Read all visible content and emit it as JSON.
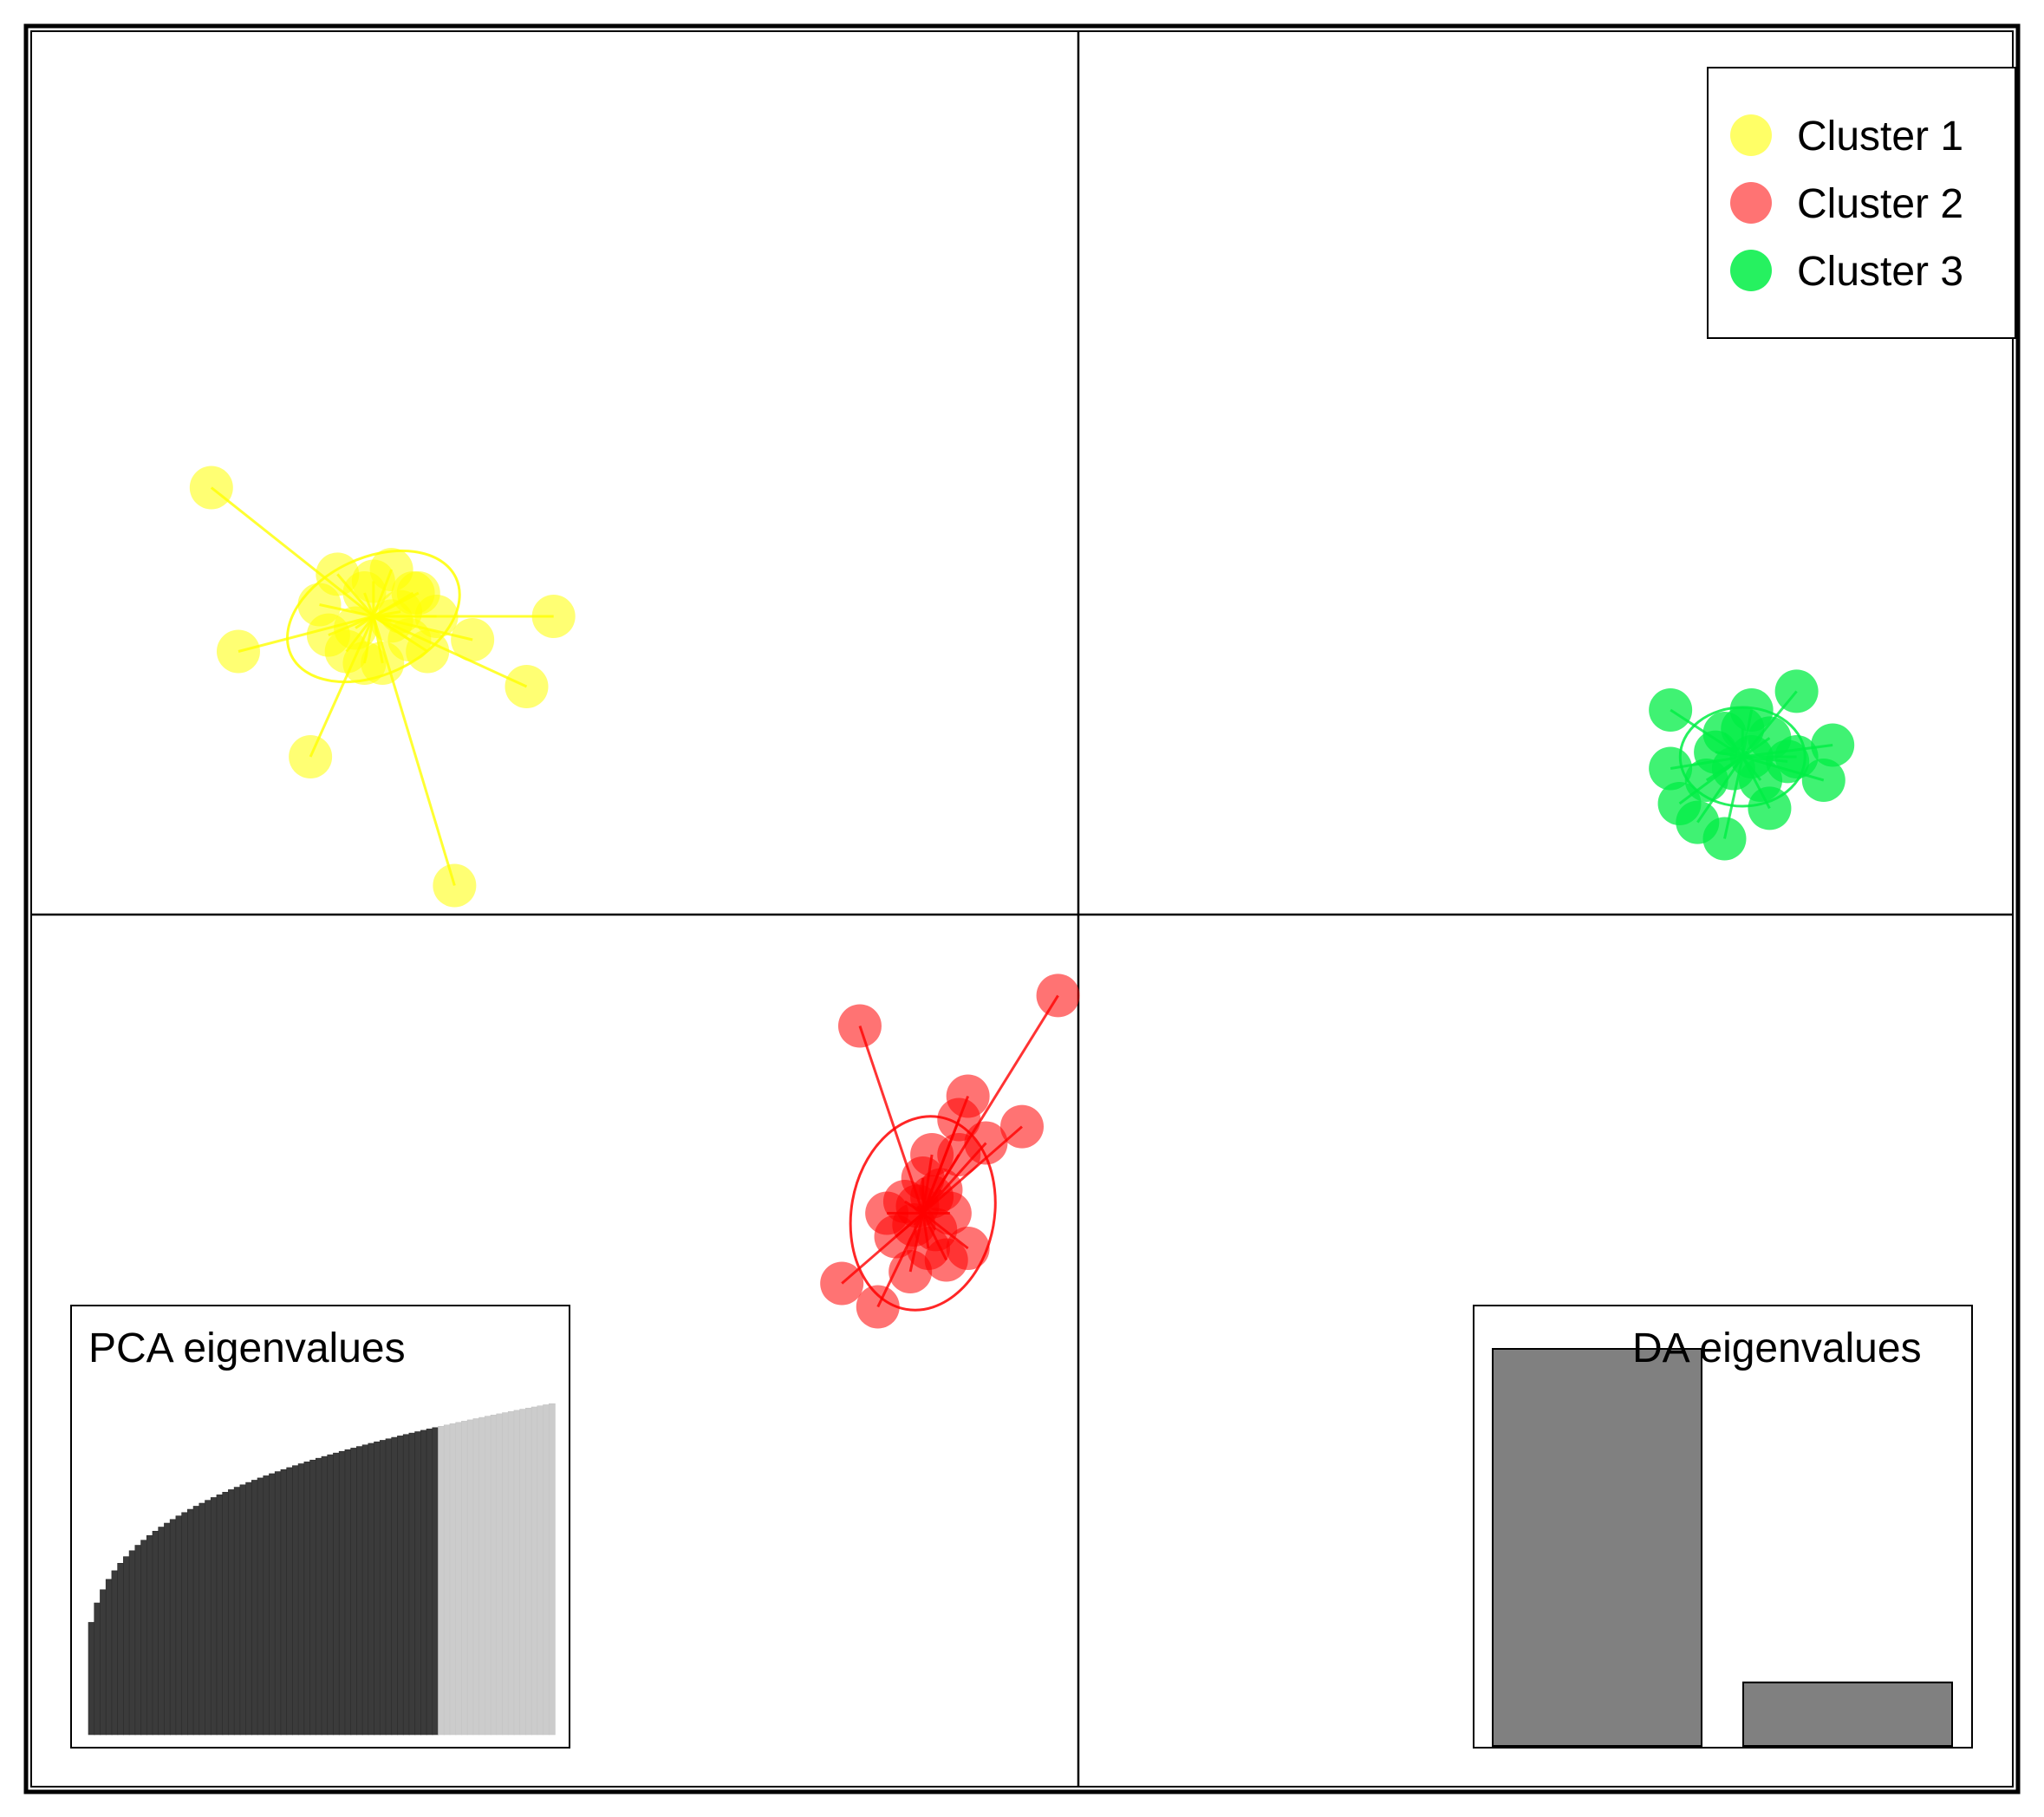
{
  "chart_data": {
    "type": "scatter",
    "title": "",
    "xlabel": "",
    "ylabel": "",
    "axes_lines": {
      "x": 0,
      "y": 0
    },
    "grid": false,
    "legend": {
      "position": "top-right",
      "entries": [
        {
          "label": "Cluster 1",
          "color": "#ffff00"
        },
        {
          "label": "Cluster 2",
          "color": "#ff0000"
        },
        {
          "label": "Cluster 3",
          "color": "#00ee44"
        }
      ]
    },
    "scatter_range": {
      "x": [
        -5.7,
        5.3
      ],
      "y": [
        -3.8,
        3.7
      ]
    },
    "series": [
      {
        "name": "Cluster 1",
        "color": "#ffff00",
        "centroid": [
          -3.8,
          1.2
        ],
        "points": [
          [
            -4.7,
            1.75
          ],
          [
            -2.8,
            1.2
          ],
          [
            -4.55,
            1.05
          ],
          [
            -2.95,
            0.9
          ],
          [
            -4.15,
            0.6
          ],
          [
            -3.35,
            0.05
          ],
          [
            -4.0,
            1.38
          ],
          [
            -3.7,
            1.4
          ],
          [
            -3.55,
            1.3
          ],
          [
            -4.1,
            1.25
          ],
          [
            -3.6,
            1.1
          ],
          [
            -3.95,
            1.05
          ],
          [
            -3.75,
            1.0
          ],
          [
            -3.45,
            1.2
          ],
          [
            -3.85,
            1.3
          ],
          [
            -3.9,
            1.15
          ],
          [
            -3.65,
            1.22
          ],
          [
            -4.05,
            1.12
          ],
          [
            -3.5,
            1.05
          ],
          [
            -3.7,
            1.18
          ],
          [
            -3.8,
            1.35
          ],
          [
            -3.85,
            1.0
          ],
          [
            -3.58,
            1.3
          ],
          [
            -3.25,
            1.1
          ]
        ]
      },
      {
        "name": "Cluster 2",
        "color": "#ff0000",
        "centroid": [
          -0.75,
          -1.35
        ],
        "points": [
          [
            -1.1,
            -0.55
          ],
          [
            0.0,
            -0.42
          ],
          [
            -0.5,
            -0.85
          ],
          [
            -0.2,
            -0.98
          ],
          [
            -1.2,
            -1.65
          ],
          [
            -1.0,
            -1.75
          ],
          [
            -0.55,
            -0.95
          ],
          [
            -0.7,
            -1.1
          ],
          [
            -0.85,
            -1.3
          ],
          [
            -0.65,
            -1.25
          ],
          [
            -0.8,
            -1.4
          ],
          [
            -0.6,
            -1.35
          ],
          [
            -0.75,
            -1.2
          ],
          [
            -0.9,
            -1.45
          ],
          [
            -0.72,
            -1.5
          ],
          [
            -0.82,
            -1.6
          ],
          [
            -0.62,
            -1.55
          ],
          [
            -0.5,
            -1.5
          ],
          [
            -0.95,
            -1.35
          ],
          [
            -0.7,
            -1.28
          ],
          [
            -0.55,
            -1.1
          ],
          [
            -0.4,
            -1.05
          ],
          [
            -0.78,
            -1.32
          ],
          [
            -0.68,
            -1.42
          ]
        ]
      },
      {
        "name": "Cluster 3",
        "color": "#00ee44",
        "centroid": [
          3.8,
          0.6
        ],
        "points": [
          [
            3.4,
            0.8
          ],
          [
            4.1,
            0.88
          ],
          [
            4.3,
            0.65
          ],
          [
            4.25,
            0.5
          ],
          [
            3.95,
            0.38
          ],
          [
            3.55,
            0.32
          ],
          [
            3.4,
            0.55
          ],
          [
            3.45,
            0.4
          ],
          [
            3.7,
            0.25
          ],
          [
            3.85,
            0.8
          ],
          [
            3.7,
            0.7
          ],
          [
            3.85,
            0.6
          ],
          [
            3.95,
            0.68
          ],
          [
            3.75,
            0.55
          ],
          [
            3.9,
            0.5
          ],
          [
            3.65,
            0.62
          ],
          [
            4.05,
            0.58
          ],
          [
            3.8,
            0.72
          ],
          [
            3.6,
            0.5
          ],
          [
            4.1,
            0.6
          ]
        ]
      }
    ],
    "insets": [
      {
        "label": "PCA eigenvalues",
        "position": "bottom-left",
        "type": "bar",
        "n_bars": 80,
        "n_retained": 60,
        "retained_color": "#3b3b3b",
        "other_color": "#cccccc"
      },
      {
        "label": "DA eigenvalues",
        "position": "bottom-right",
        "type": "bar",
        "values": [
          100,
          16
        ],
        "color": "#808080"
      }
    ]
  }
}
